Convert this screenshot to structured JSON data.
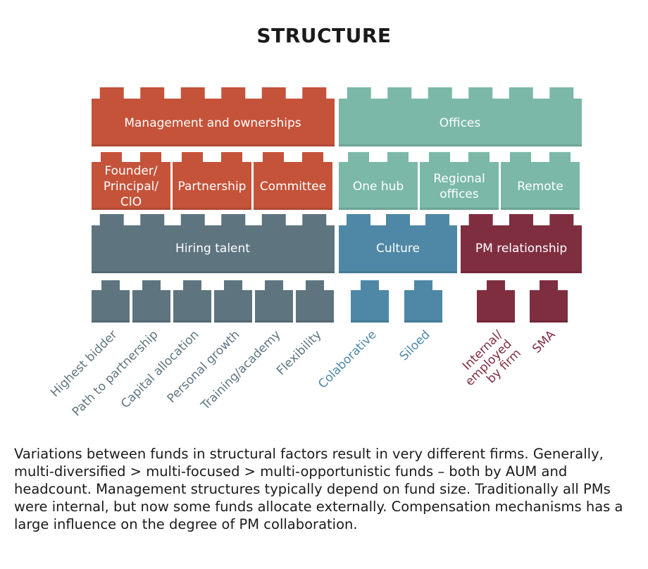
{
  "title": "STRUCTURE",
  "colors": {
    "management": "#C4533A",
    "offices": "#7BB8A8",
    "hiring": "#5E7580",
    "culture": "#4E88A6",
    "pm": "#7F2E40"
  },
  "management": {
    "header": "Management and ownerships",
    "items": [
      {
        "label": "Founder/\nPrincipal/\nCIO"
      },
      {
        "label": "Partnership"
      },
      {
        "label": "Committee"
      }
    ]
  },
  "offices": {
    "header": "Offices",
    "items": [
      {
        "label": "One hub"
      },
      {
        "label": "Regional\noffices"
      },
      {
        "label": "Remote"
      }
    ]
  },
  "hiring": {
    "header": "Hiring talent",
    "items": [
      "Highest bidder",
      "Path to partnership",
      "Capital allocation",
      "Personal growth",
      "Training/academy",
      "Flexibility"
    ]
  },
  "culture": {
    "header": "Culture",
    "items": [
      "Colaborative",
      "Siloed"
    ]
  },
  "pm": {
    "header": "PM relationship",
    "items": [
      "Internal/\nemployed\nby firm",
      "SMA"
    ]
  },
  "caption": "Variations between funds in structural factors result in very different firms. Generally, multi-diversified > multi-focused > multi-opportunistic funds – both by AUM and headcount. Management structures typically depend on fund size. Traditionally all PMs were internal, but now some funds allocate externally. Compensation mechanisms has a large influence on the degree of PM collaboration."
}
